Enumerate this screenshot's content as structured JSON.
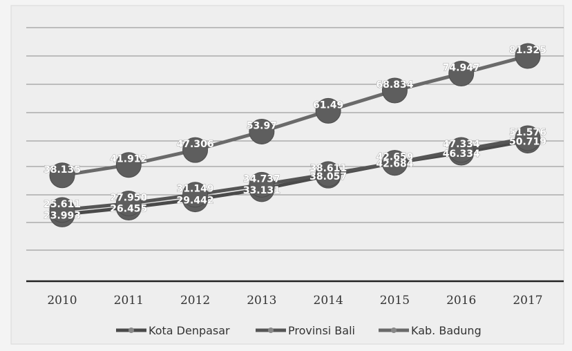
{
  "chart_data": {
    "type": "line",
    "title": "",
    "xlabel": "",
    "ylabel": "",
    "categories": [
      "2010",
      "2011",
      "2012",
      "2013",
      "2014",
      "2015",
      "2016",
      "2017"
    ],
    "ylim": [
      10,
      95
    ],
    "grid": true,
    "legend_position": "bottom",
    "series": [
      {
        "name": "Kota Denpasar",
        "values": [
          23.993,
          26.455,
          29.442,
          33.131,
          38.057,
          42.684,
          46.334,
          50.719
        ],
        "labels": [
          "23.993",
          "26.455",
          "29.442",
          "33.131",
          "38.057",
          "42.684",
          "46.334",
          "50.719"
        ],
        "color": "#4a4a4a"
      },
      {
        "name": "Provinsi Bali",
        "values": [
          25.611,
          27.95,
          31.149,
          34.737,
          38.611,
          42.659,
          47.334,
          51.576
        ],
        "labels": [
          "25.611",
          "27.950",
          "31.149",
          "34.737",
          "38.611",
          "42.659",
          "47.334",
          "51.576"
        ],
        "color": "#555555"
      },
      {
        "name": "Kab. Badung",
        "values": [
          38.135,
          41.912,
          47.306,
          53.97,
          61.49,
          68.834,
          74.947,
          81.325
        ],
        "labels": [
          "38.135",
          "41.912",
          "47.306",
          "53.97",
          "61.49",
          "68.834",
          "74.947",
          "81.325"
        ],
        "color": "#6a6a6a"
      }
    ]
  }
}
